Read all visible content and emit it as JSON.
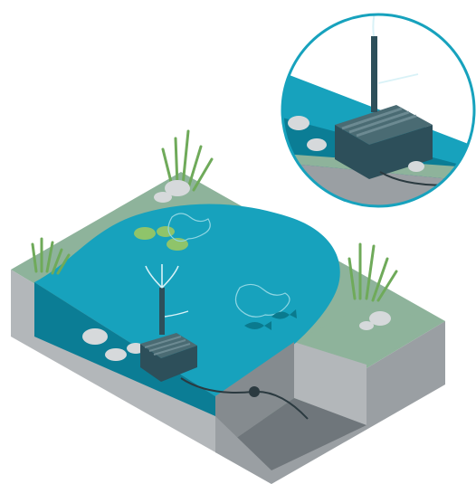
{
  "illustration": {
    "subject": "garden-pond-pump-filter",
    "colors": {
      "water_surface": "#17a2bd",
      "water_deep": "#0d8aa3",
      "water_side": "#0b7d95",
      "grass": "#8eb39b",
      "grass_edge": "#7ea88d",
      "soil_front": "#b3b7ba",
      "soil_side": "#9a9fa3",
      "soil_dark": "#6f767b",
      "cut_inner": "#858b8f",
      "reeds": "#6faa5a",
      "reeds_dark": "#4e8a45",
      "lilypad": "#8fc46a",
      "filter_body": "#2d4f5a",
      "filter_top": "#4a6b73",
      "rocks": "#d6d9db",
      "fish": "#0a7a8e",
      "callout_border": "#17a2bd",
      "callout_bg": "#ffffff"
    },
    "icons": {
      "fountain": "fountain-spray-icon",
      "cable": "power-cable-icon",
      "fish": "koi-fish-icon"
    }
  }
}
